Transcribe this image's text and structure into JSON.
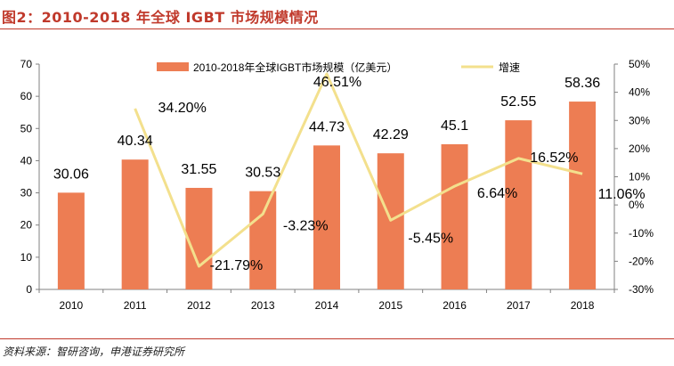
{
  "header": {
    "title": "图2：2010-2018 年全球 IGBT 市场规模情况"
  },
  "footer": {
    "source": "资料来源：智研咨询，申港证券研究所"
  },
  "chart_data": {
    "type": "bar+line",
    "title": "图2：2010-2018 年全球 IGBT 市场规模情况",
    "categories": [
      "2010",
      "2011",
      "2012",
      "2013",
      "2014",
      "2015",
      "2016",
      "2017",
      "2018"
    ],
    "series": [
      {
        "name": "2010-2018年全球IGBT市场规模（亿美元）",
        "type": "bar",
        "axis": "left",
        "color": "#ED7D53",
        "values": [
          30.06,
          40.34,
          31.55,
          30.53,
          44.73,
          42.29,
          45.1,
          52.55,
          58.36
        ],
        "labels": [
          "30.06",
          "40.34",
          "31.55",
          "30.53",
          "44.73",
          "42.29",
          "45.1",
          "52.55",
          "58.36"
        ]
      },
      {
        "name": "增速",
        "type": "line",
        "axis": "right",
        "color": "#F3E08D",
        "values": [
          null,
          34.2,
          -21.79,
          -3.23,
          46.51,
          -5.45,
          6.64,
          16.52,
          11.06
        ],
        "labels": [
          "",
          "34.20%",
          "-21.79%",
          "-3.23%",
          "46.51%",
          "-5.45%",
          "6.64%",
          "16.52%",
          "11.06%"
        ]
      }
    ],
    "y_left": {
      "min": 0,
      "max": 70,
      "ticks": [
        "0",
        "10",
        "20",
        "30",
        "40",
        "50",
        "60",
        "70"
      ]
    },
    "y_right": {
      "min": -30,
      "max": 50,
      "ticks": [
        "-30%",
        "-20%",
        "-10%",
        "0%",
        "10%",
        "20%",
        "30%",
        "40%",
        "50%"
      ]
    },
    "grid": false,
    "legend_position": "top"
  }
}
